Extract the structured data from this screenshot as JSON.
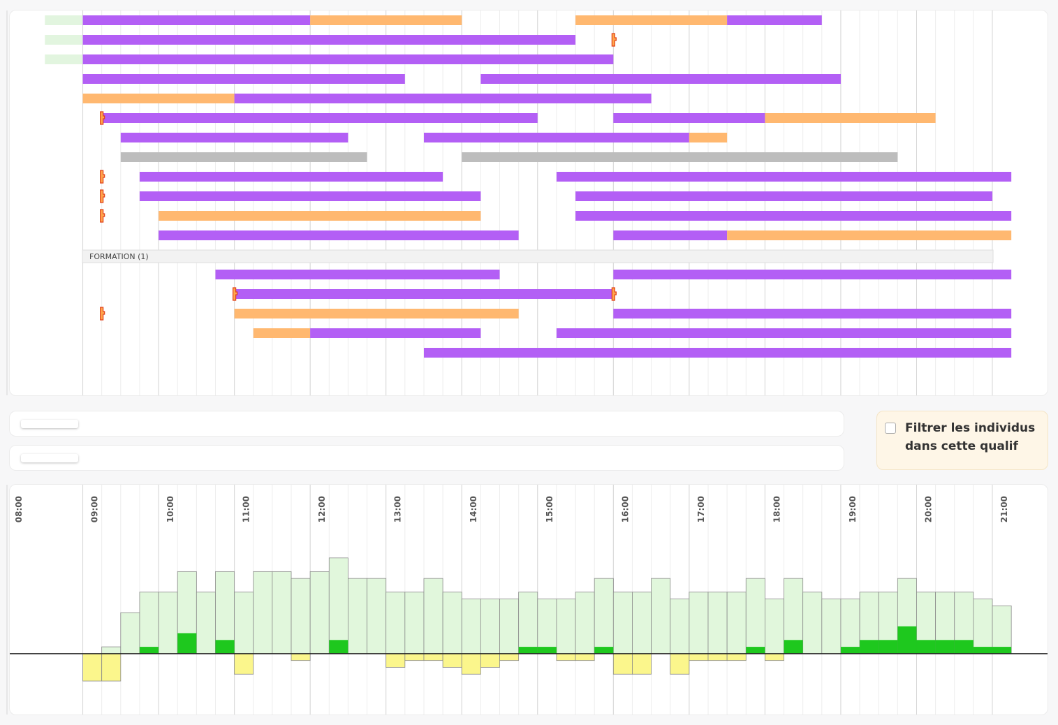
{
  "chart_data": [
    {
      "type": "gantt",
      "xlim": [
        8,
        21.7
      ],
      "xticks": [
        {
          "value": 8,
          "label": "08:00"
        },
        {
          "value": 9,
          "label": "09:00"
        },
        {
          "value": 10,
          "label": "10:00"
        },
        {
          "value": 11,
          "label": "11:00"
        },
        {
          "value": 12,
          "label": "12:00"
        },
        {
          "value": 13,
          "label": "13:00"
        },
        {
          "value": 14,
          "label": "14:00"
        },
        {
          "value": 15,
          "label": "15:00"
        },
        {
          "value": 16,
          "label": "16:00"
        },
        {
          "value": 17,
          "label": "17:00"
        },
        {
          "value": 18,
          "label": "18:00"
        },
        {
          "value": 19,
          "label": "19:00"
        },
        {
          "value": 20,
          "label": "20:00"
        },
        {
          "value": 21,
          "label": "21:00"
        }
      ],
      "marker_color": "#ffa64d",
      "rows": [
        {
          "segments": [
            {
              "start": 8.5,
              "end": 9,
              "color": "#e2f5df"
            },
            {
              "start": 9,
              "end": 12,
              "color": "#b35ff5"
            },
            {
              "start": 12,
              "end": 14,
              "color": "#ffb870"
            },
            {
              "start": 15.5,
              "end": 17.5,
              "color": "#ffb870"
            },
            {
              "start": 17.5,
              "end": 18.75,
              "color": "#b35ff5"
            }
          ]
        },
        {
          "segments": [
            {
              "start": 8.5,
              "end": 9,
              "color": "#e2f5df"
            },
            {
              "start": 9,
              "end": 15.5,
              "color": "#b35ff5"
            }
          ],
          "markers": [
            16
          ]
        },
        {
          "segments": [
            {
              "start": 8.5,
              "end": 9,
              "color": "#e2f5df"
            },
            {
              "start": 9,
              "end": 16,
              "color": "#b35ff5"
            }
          ]
        },
        {
          "segments": [
            {
              "start": 9,
              "end": 13.25,
              "color": "#b35ff5"
            },
            {
              "start": 14.25,
              "end": 19,
              "color": "#b35ff5"
            }
          ]
        },
        {
          "segments": [
            {
              "start": 9,
              "end": 11,
              "color": "#ffb870"
            },
            {
              "start": 11,
              "end": 16.5,
              "color": "#b35ff5"
            }
          ]
        },
        {
          "segments": [
            {
              "start": 9.25,
              "end": 15,
              "color": "#b35ff5"
            },
            {
              "start": 16,
              "end": 18,
              "color": "#b35ff5"
            },
            {
              "start": 18,
              "end": 20.25,
              "color": "#ffb870"
            }
          ],
          "markers": [
            9.25
          ]
        },
        {
          "segments": [
            {
              "start": 9.5,
              "end": 12.5,
              "color": "#b35ff5"
            },
            {
              "start": 13.5,
              "end": 17,
              "color": "#b35ff5"
            },
            {
              "start": 17,
              "end": 17.5,
              "color": "#ffb870"
            }
          ]
        },
        {
          "segments": [
            {
              "start": 9.5,
              "end": 12.75,
              "color": "#bdbdbd"
            },
            {
              "start": 14,
              "end": 19.75,
              "color": "#bdbdbd"
            }
          ]
        },
        {
          "segments": [
            {
              "start": 9.75,
              "end": 13.75,
              "color": "#b35ff5"
            },
            {
              "start": 15.25,
              "end": 21.25,
              "color": "#b35ff5"
            }
          ],
          "markers": [
            9.25
          ]
        },
        {
          "segments": [
            {
              "start": 9.75,
              "end": 14.25,
              "color": "#b35ff5"
            },
            {
              "start": 15.5,
              "end": 21,
              "color": "#b35ff5"
            }
          ],
          "markers": [
            9.25
          ]
        },
        {
          "segments": [
            {
              "start": 10,
              "end": 14.25,
              "color": "#ffb870"
            },
            {
              "start": 15.5,
              "end": 21.25,
              "color": "#b35ff5"
            }
          ],
          "markers": [
            9.25
          ]
        },
        {
          "segments": [
            {
              "start": 10,
              "end": 14.75,
              "color": "#b35ff5"
            },
            {
              "start": 16,
              "end": 17.5,
              "color": "#b35ff5"
            },
            {
              "start": 17.5,
              "end": 21.25,
              "color": "#ffb870"
            }
          ]
        },
        {
          "label": "FORMATION (1)"
        },
        {
          "segments": [
            {
              "start": 10.75,
              "end": 14.5,
              "color": "#b35ff5"
            },
            {
              "start": 16,
              "end": 21.25,
              "color": "#b35ff5"
            }
          ]
        },
        {
          "segments": [
            {
              "start": 11,
              "end": 16,
              "color": "#b35ff5"
            }
          ],
          "markers": [
            11,
            16
          ]
        },
        {
          "segments": [
            {
              "start": 11,
              "end": 14.75,
              "color": "#ffb870"
            },
            {
              "start": 16,
              "end": 21.25,
              "color": "#b35ff5"
            }
          ],
          "markers": [
            9.25
          ]
        },
        {
          "segments": [
            {
              "start": 11.25,
              "end": 12,
              "color": "#ffb870"
            },
            {
              "start": 12,
              "end": 14.25,
              "color": "#b35ff5"
            },
            {
              "start": 15.25,
              "end": 21.25,
              "color": "#b35ff5"
            }
          ]
        },
        {
          "segments": [
            {
              "start": 13.5,
              "end": 21.25,
              "color": "#b35ff5"
            }
          ]
        }
      ]
    },
    {
      "type": "bar",
      "xlim": [
        8,
        21.7
      ],
      "ylim": [
        -9,
        15
      ],
      "x": [
        9,
        9.25,
        9.5,
        9.75,
        10,
        10.25,
        10.5,
        10.75,
        11,
        11.25,
        11.5,
        11.75,
        12,
        12.25,
        12.5,
        12.75,
        13,
        13.25,
        13.5,
        13.75,
        14,
        14.25,
        14.5,
        14.75,
        15,
        15.25,
        15.5,
        15.75,
        16,
        16.25,
        16.5,
        16.75,
        17,
        17.25,
        17.5,
        17.75,
        18,
        18.25,
        18.5,
        18.75,
        19,
        19.25,
        19.5,
        19.75,
        20,
        20.25,
        20.5,
        20.75,
        21
      ],
      "series": [
        {
          "color": "#e1f7dc",
          "values": [
            0,
            1,
            6,
            9,
            9,
            12,
            9,
            12,
            9,
            12,
            12,
            11,
            12,
            14,
            11,
            11,
            9,
            9,
            11,
            9,
            8,
            8,
            8,
            9,
            8,
            8,
            9,
            11,
            9,
            9,
            11,
            8,
            9,
            9,
            9,
            11,
            8,
            11,
            9,
            8,
            8,
            9,
            9,
            11,
            9,
            9,
            9,
            8,
            7
          ]
        },
        {
          "color": "#fbf68c",
          "values": [
            -4,
            -4,
            0,
            0,
            0,
            0,
            0,
            0,
            -3,
            0,
            0,
            -1,
            0,
            0,
            0,
            0,
            -2,
            -1,
            -1,
            -2,
            -3,
            -2,
            -1,
            0,
            0,
            -1,
            -1,
            0,
            -3,
            -3,
            0,
            -3,
            -1,
            -1,
            -1,
            0,
            -1,
            0,
            0,
            0,
            0,
            0,
            0,
            0,
            0,
            0,
            0,
            0,
            0
          ]
        },
        {
          "color": "#1ec81e",
          "values": [
            0,
            0,
            0,
            1,
            0,
            3,
            0,
            2,
            0,
            0,
            0,
            0,
            0,
            2,
            0,
            0,
            0,
            0,
            0,
            0,
            0,
            0,
            0,
            1,
            1,
            0,
            0,
            1,
            0,
            0,
            0,
            0,
            0,
            0,
            0,
            1,
            0,
            2,
            0,
            0,
            1,
            2,
            2,
            4,
            2,
            2,
            2,
            1,
            1
          ]
        }
      ]
    }
  ],
  "filter": {
    "label": "Filtrer les individus dans cette qualif"
  }
}
